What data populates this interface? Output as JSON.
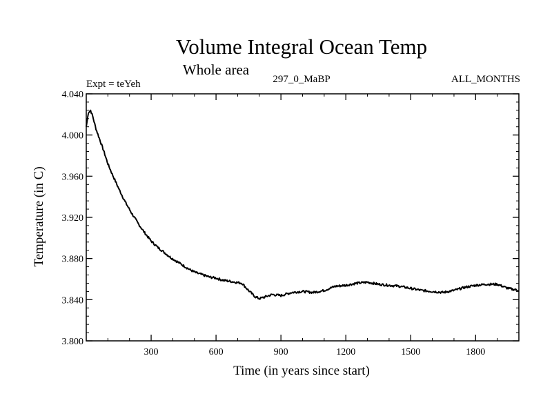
{
  "chart_data": {
    "type": "line",
    "title": "Volume Integral Ocean Temp",
    "subtitle": "Whole area",
    "annotations": {
      "left": "Expt = teYeh",
      "center": "297_0_MaBP",
      "right": "ALL_MONTHS"
    },
    "xlabel": "Time (in years since start)",
    "ylabel": "Temperature (in C)",
    "xlim": [
      0,
      2000
    ],
    "ylim": [
      3.8,
      4.04
    ],
    "xticks": [
      300,
      600,
      900,
      1200,
      1500,
      1800
    ],
    "xtick_labels": [
      "300",
      "600",
      "900",
      "1200",
      "1500",
      "1800"
    ],
    "yticks": [
      3.8,
      3.84,
      3.88,
      3.92,
      3.96,
      4.0,
      4.04
    ],
    "ytick_labels": [
      "3.800",
      "3.840",
      "3.880",
      "3.920",
      "3.960",
      "4.000",
      "4.040"
    ],
    "grid": false,
    "series": [
      {
        "name": "teYeh",
        "color": "#000000",
        "x": [
          0,
          10,
          20,
          30,
          45,
          60,
          80,
          100,
          120,
          150,
          180,
          210,
          240,
          270,
          300,
          330,
          360,
          390,
          420,
          450,
          480,
          510,
          540,
          570,
          600,
          630,
          660,
          690,
          720,
          750,
          780,
          800,
          830,
          860,
          900,
          950,
          1000,
          1050,
          1100,
          1150,
          1200,
          1250,
          1300,
          1350,
          1400,
          1450,
          1500,
          1550,
          1600,
          1650,
          1700,
          1750,
          1800,
          1850,
          1900,
          1950,
          2000
        ],
        "y": [
          4.008,
          4.022,
          4.024,
          4.018,
          4.006,
          3.997,
          3.985,
          3.972,
          3.962,
          3.948,
          3.935,
          3.924,
          3.914,
          3.905,
          3.897,
          3.891,
          3.886,
          3.881,
          3.877,
          3.873,
          3.869,
          3.866,
          3.864,
          3.862,
          3.861,
          3.859,
          3.858,
          3.857,
          3.856,
          3.849,
          3.843,
          3.841,
          3.843,
          3.845,
          3.844,
          3.847,
          3.848,
          3.847,
          3.849,
          3.853,
          3.854,
          3.856,
          3.857,
          3.855,
          3.854,
          3.853,
          3.851,
          3.849,
          3.848,
          3.847,
          3.849,
          3.852,
          3.854,
          3.855,
          3.855,
          3.851,
          3.849
        ]
      }
    ]
  }
}
